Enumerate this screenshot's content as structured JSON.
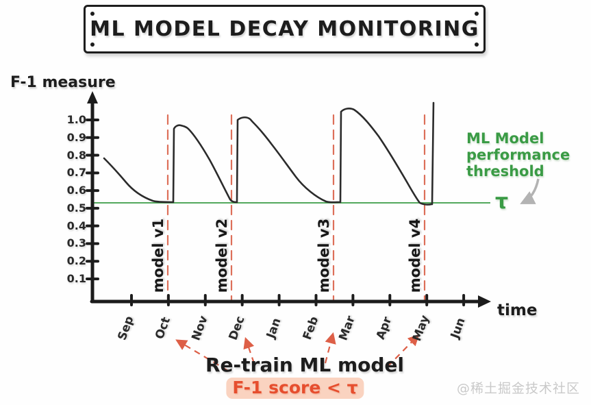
{
  "title": "ML MODEL DECAY MONITORING",
  "watermark": "@稀土掘金技术社区",
  "chart_data": {
    "type": "line",
    "title": "ML MODEL DECAY MONITORING",
    "xlabel": "time",
    "ylabel": "F-1 measure",
    "x_tick_labels": [
      "Sep",
      "Oct",
      "Nov",
      "Dec",
      "Jan",
      "Feb",
      "Mar",
      "Apr",
      "May",
      "Jun"
    ],
    "y_tick_labels": [
      "1.0",
      "0.9",
      "0.8",
      "0.7",
      "0.6",
      "0.5",
      "0.4",
      "0.3",
      "0.2",
      "0.1"
    ],
    "ylim": [
      0,
      1.1
    ],
    "grid": false,
    "legend": "none",
    "threshold": {
      "value": 0.53,
      "symbol": "τ",
      "color": "#3a9b45",
      "note_lines": [
        "ML Model",
        "performance",
        "threshold"
      ]
    },
    "line_color": "#2b2b2b",
    "retrain_line_color": "#dd6f59",
    "retrain_events": [
      {
        "label": "model v1",
        "month": "Oct"
      },
      {
        "label": "model v2",
        "month": "late Nov"
      },
      {
        "label": "model v3",
        "month": "mid Feb"
      },
      {
        "label": "model v4",
        "month": "May"
      }
    ],
    "cycles": [
      {
        "model": "initial",
        "points": [
          [
            "Sep",
            0.78
          ],
          [
            "late Sep",
            0.62
          ],
          [
            "Oct",
            0.53
          ]
        ]
      },
      {
        "model": "v1",
        "points": [
          [
            "Oct",
            0.97
          ],
          [
            "Nov",
            0.75
          ],
          [
            "late Nov",
            0.53
          ]
        ]
      },
      {
        "model": "v2",
        "points": [
          [
            "Dec",
            1.0
          ],
          [
            "Jan",
            0.78
          ],
          [
            "Feb",
            0.6
          ],
          [
            "mid Feb",
            0.53
          ]
        ]
      },
      {
        "model": "v3",
        "points": [
          [
            "mid Feb",
            1.05
          ],
          [
            "Mar",
            0.9
          ],
          [
            "Apr",
            0.68
          ],
          [
            "May",
            0.53
          ]
        ]
      },
      {
        "model": "v4",
        "points": [
          [
            "May",
            1.1
          ]
        ]
      }
    ],
    "annotation": {
      "title": "Re-train ML model",
      "condition": "F-1 score < τ"
    }
  }
}
